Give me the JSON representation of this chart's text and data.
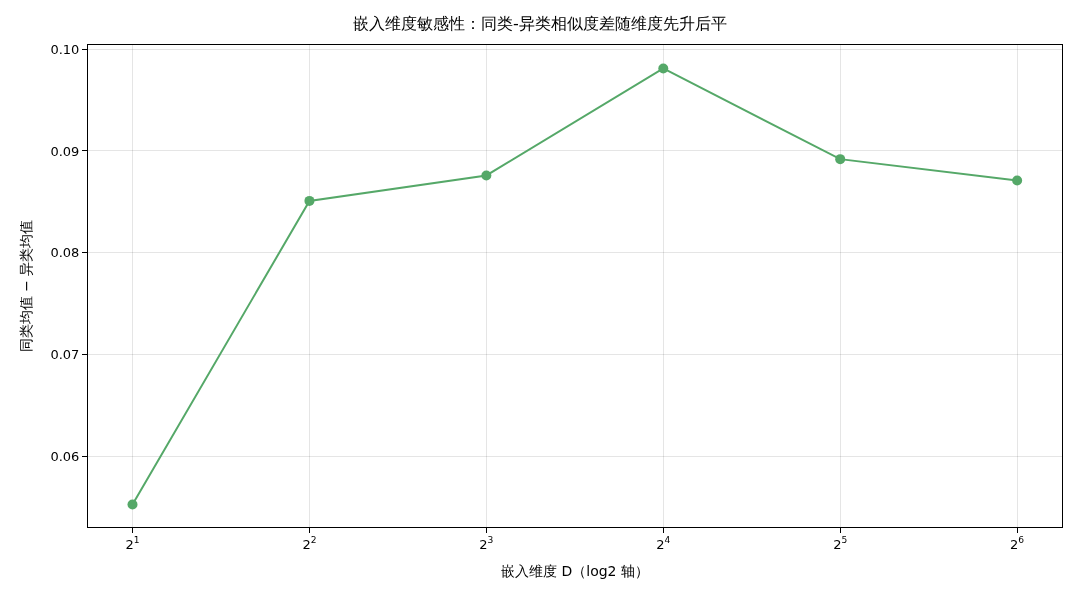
{
  "chart_data": {
    "type": "line",
    "title": "嵌入维度敏感性：同类-异类相似度差随维度先升后平",
    "xlabel": "嵌入维度 D（log2 轴）",
    "ylabel": "同类均值 − 异类均值",
    "x": [
      2,
      4,
      8,
      16,
      32,
      64
    ],
    "series": [
      {
        "color": "#55a868",
        "values": [
          0.0553,
          0.0851,
          0.0876,
          0.0981,
          0.0892,
          0.0871
        ]
      }
    ],
    "log": "x",
    "xlim": [
      1.68,
      76.3
    ],
    "xticks": [
      {
        "value": 2,
        "label": "2$^{1}$"
      },
      {
        "value": 4,
        "label": "2$^{2}$"
      },
      {
        "value": 8,
        "label": "2$^{3}$"
      },
      {
        "value": 16,
        "label": "2$^{4}$"
      },
      {
        "value": 32,
        "label": "2$^{5}$"
      },
      {
        "value": 64,
        "label": "2$^{6}$"
      }
    ],
    "ylim": [
      0.0531,
      0.1004
    ],
    "yticks": [
      {
        "value": 0.06,
        "label": "0.06"
      },
      {
        "value": 0.07,
        "label": "0.07"
      },
      {
        "value": 0.08,
        "label": "0.08"
      },
      {
        "value": 0.09,
        "label": "0.09"
      },
      {
        "value": 0.1,
        "label": "0.10"
      }
    ],
    "grid": true,
    "marker": "circle",
    "line_style": "solid"
  }
}
